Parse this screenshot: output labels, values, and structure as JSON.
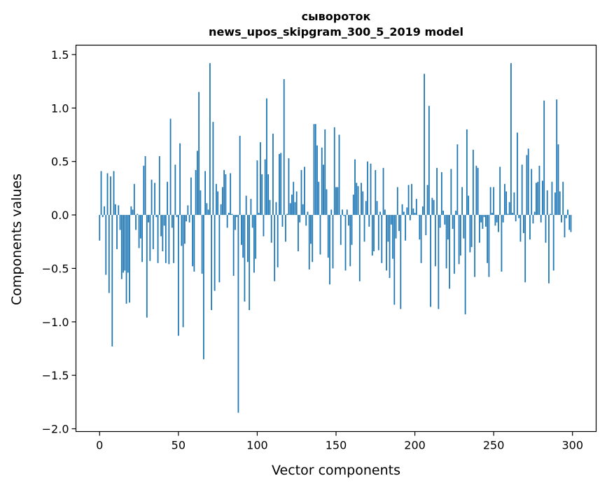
{
  "chart_data": {
    "type": "bar",
    "title_line1": "сывороток",
    "title_line2": "news_upos_skipgram_300_5_2019 model",
    "xlabel": "Vector components",
    "ylabel": "Components values",
    "xlim": [
      -15,
      315
    ],
    "ylim": [
      -2.026,
      1.588
    ],
    "xticks": [
      0,
      50,
      100,
      150,
      200,
      250,
      300
    ],
    "xtick_labels": [
      "0",
      "50",
      "100",
      "150",
      "200",
      "250",
      "300"
    ],
    "yticks": [
      -2.0,
      -1.5,
      -1.0,
      -0.5,
      0.0,
      0.5,
      1.0,
      1.5
    ],
    "ytick_labels": [
      "−2.0",
      "−1.5",
      "−1.0",
      "−0.5",
      "0.0",
      "0.5",
      "1.0",
      "1.5"
    ],
    "grid": false,
    "bar_color": "#1f77b4",
    "values": [
      -0.24,
      0.41,
      -0.02,
      0.08,
      -0.56,
      0.39,
      -0.73,
      0.36,
      -1.23,
      0.41,
      0.1,
      -0.32,
      0.09,
      -0.14,
      -0.6,
      -0.54,
      -0.52,
      -0.83,
      -0.54,
      -0.82,
      0.08,
      0.05,
      0.29,
      -0.14,
      0.01,
      -0.31,
      -0.22,
      -0.44,
      0.46,
      0.55,
      -0.96,
      -0.07,
      -0.43,
      0.33,
      -0.32,
      0.3,
      -0.02,
      -0.45,
      0.55,
      -0.2,
      -0.34,
      -0.1,
      -0.45,
      0.31,
      -0.46,
      0.9,
      -0.12,
      -0.45,
      0.47,
      -0.02,
      -1.13,
      0.67,
      -0.29,
      -1.05,
      -0.27,
      -0.06,
      0.09,
      -0.07,
      0.35,
      -0.48,
      -0.53,
      0.42,
      0.6,
      1.15,
      0.23,
      -0.55,
      -1.35,
      0.41,
      0.11,
      0.05,
      1.42,
      -0.89,
      0.87,
      -0.71,
      0.29,
      0.22,
      -0.63,
      0.1,
      0.26,
      0.42,
      0.38,
      -0.12,
      0.02,
      0.39,
      0.01,
      -0.57,
      -0.14,
      -0.02,
      -1.85,
      0.74,
      -0.28,
      -0.4,
      -0.81,
      0.18,
      -0.44,
      -0.89,
      0.15,
      -0.12,
      -0.54,
      -0.41,
      0.51,
      0.02,
      0.68,
      0.38,
      -0.2,
      0.52,
      1.09,
      0.38,
      0.14,
      -0.26,
      0.76,
      -0.62,
      0.12,
      -0.49,
      0.57,
      0.58,
      -0.11,
      1.27,
      -0.25,
      0.01,
      0.53,
      0.11,
      0.19,
      0.31,
      0.12,
      0.22,
      -0.34,
      -0.07,
      0.42,
      0.1,
      0.45,
      -0.1,
      0.03,
      -0.51,
      -0.27,
      -0.44,
      0.85,
      0.85,
      0.65,
      0.31,
      -0.37,
      0.63,
      0.47,
      0.8,
      0.24,
      -0.4,
      -0.65,
      0.05,
      -0.5,
      0.82,
      0.26,
      0.26,
      0.75,
      -0.28,
      0.05,
      -0.01,
      -0.52,
      0.05,
      -0.1,
      -0.48,
      -0.28,
      0.19,
      0.52,
      0.3,
      0.27,
      -0.62,
      0.3,
      0.22,
      -0.25,
      0.13,
      0.5,
      -0.11,
      0.48,
      -0.38,
      -0.34,
      0.42,
      0.13,
      -0.33,
      0.03,
      -0.45,
      0.44,
      0.05,
      -0.52,
      -0.25,
      -0.59,
      -0.09,
      -0.41,
      -0.84,
      -0.22,
      0.26,
      -0.15,
      -0.88,
      0.1,
      0.03,
      -0.24,
      0.07,
      0.28,
      -0.05,
      0.29,
      0.06,
      0.02,
      0.15,
      0.0,
      -0.23,
      -0.45,
      0.08,
      1.32,
      -0.19,
      0.28,
      1.02,
      -0.86,
      0.16,
      0.14,
      -0.48,
      0.44,
      -0.88,
      -0.12,
      0.4,
      0.04,
      -0.09,
      -0.5,
      -0.23,
      -0.69,
      0.43,
      -0.13,
      -0.55,
      0.04,
      0.66,
      -0.46,
      -0.38,
      0.26,
      -0.22,
      -0.93,
      0.8,
      0.18,
      -0.35,
      -0.3,
      0.61,
      -0.58,
      0.46,
      0.44,
      -0.26,
      -0.07,
      -0.13,
      -0.02,
      -0.11,
      -0.45,
      -0.58,
      0.26,
      0.02,
      0.26,
      -0.1,
      -0.07,
      -0.16,
      0.45,
      -0.53,
      -0.07,
      0.29,
      0.22,
      0.01,
      0.12,
      1.42,
      0.02,
      0.21,
      -0.06,
      0.77,
      -0.03,
      -0.25,
      0.47,
      -0.17,
      -0.63,
      0.56,
      0.62,
      -0.23,
      0.43,
      -0.08,
      0.03,
      0.3,
      0.31,
      0.46,
      -0.07,
      0.32,
      1.07,
      -0.26,
      0.23,
      -0.64,
      0.01,
      0.31,
      -0.52,
      0.21,
      1.08,
      0.66,
      0.22,
      -0.07,
      0.31,
      -0.21,
      -0.03,
      0.05,
      -0.14,
      -0.16
    ]
  }
}
